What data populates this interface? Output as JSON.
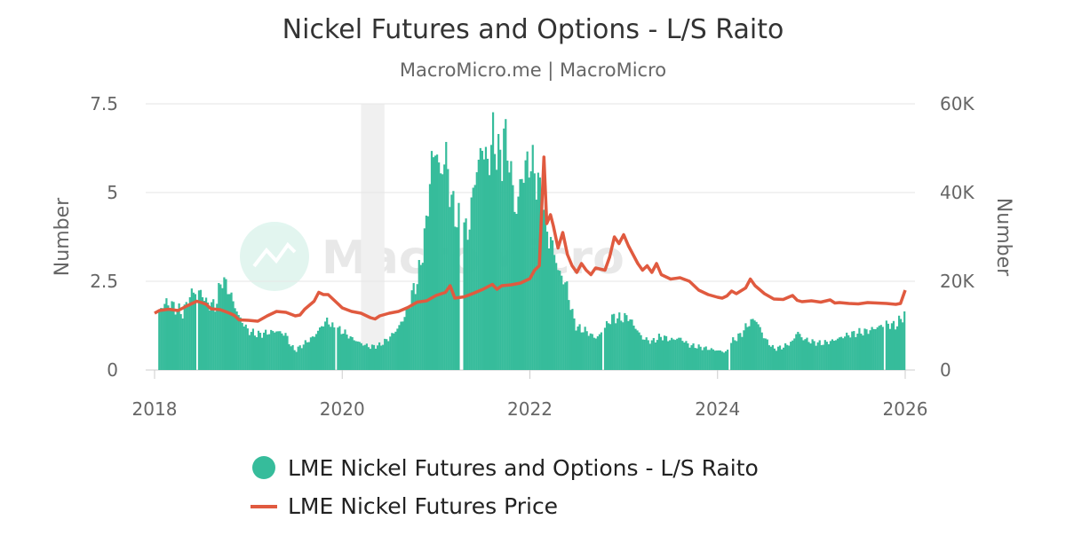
{
  "chart_data": {
    "type": "bar+line",
    "title": "Nickel Futures and Options - L/S Raito",
    "subtitle": "MacroMicro.me | MacroMicro",
    "watermark": "MacroMicro",
    "x_axis": {
      "ticks": [
        "2018",
        "2020",
        "2022",
        "2024",
        "2026"
      ],
      "range": [
        2018,
        2026
      ]
    },
    "y_left": {
      "title": "Number",
      "ticks": [
        "0",
        "2.5",
        "5",
        "7.5"
      ],
      "range": [
        0,
        7.5
      ]
    },
    "y_right": {
      "title": "Number",
      "ticks": [
        "0",
        "20K",
        "40K",
        "60K"
      ],
      "range": [
        0,
        60000
      ]
    },
    "shaded_region": {
      "from": 2020.2,
      "to": 2020.45
    },
    "colors": {
      "bars": "#36bc9b",
      "line": "#e05a3f",
      "grid": "#e6e6e6",
      "shade": "#f0f0f0"
    },
    "legend": [
      {
        "label": "LME Nickel Futures and Options - L/S Raito",
        "marker": "circle"
      },
      {
        "label": "LME Nickel Futures Price",
        "marker": "line"
      }
    ],
    "series": [
      {
        "name": "LME Nickel Futures and Options - L/S Raito",
        "axis": "left",
        "kind": "bar",
        "points": [
          [
            2018.05,
            1.6
          ],
          [
            2018.1,
            1.9
          ],
          [
            2018.2,
            1.8
          ],
          [
            2018.3,
            1.6
          ],
          [
            2018.4,
            2.2
          ],
          [
            2018.5,
            2.2
          ],
          [
            2018.55,
            1.9
          ],
          [
            2018.65,
            1.8
          ],
          [
            2018.72,
            2.6
          ],
          [
            2018.8,
            2.2
          ],
          [
            2018.9,
            1.5
          ],
          [
            2019.0,
            1.1
          ],
          [
            2019.1,
            1.0
          ],
          [
            2019.2,
            1.05
          ],
          [
            2019.3,
            1.1
          ],
          [
            2019.4,
            1.0
          ],
          [
            2019.45,
            0.7
          ],
          [
            2019.5,
            0.55
          ],
          [
            2019.6,
            0.75
          ],
          [
            2019.7,
            0.95
          ],
          [
            2019.8,
            1.3
          ],
          [
            2019.85,
            1.4
          ],
          [
            2019.9,
            1.2
          ],
          [
            2020.0,
            1.1
          ],
          [
            2020.1,
            0.9
          ],
          [
            2020.2,
            0.75
          ],
          [
            2020.3,
            0.65
          ],
          [
            2020.4,
            0.7
          ],
          [
            2020.5,
            0.9
          ],
          [
            2020.6,
            1.2
          ],
          [
            2020.7,
            1.7
          ],
          [
            2020.75,
            2.2
          ],
          [
            2020.8,
            2.5
          ],
          [
            2020.85,
            3.2
          ],
          [
            2020.9,
            4.2
          ],
          [
            2020.95,
            5.8
          ],
          [
            2021.0,
            6.3
          ],
          [
            2021.05,
            5.4
          ],
          [
            2021.1,
            6.2
          ],
          [
            2021.15,
            5.0
          ],
          [
            2021.2,
            4.4
          ],
          [
            2021.3,
            4.0
          ],
          [
            2021.35,
            3.9
          ],
          [
            2021.4,
            5.2
          ],
          [
            2021.5,
            6.4
          ],
          [
            2021.55,
            5.7
          ],
          [
            2021.6,
            6.6
          ],
          [
            2021.65,
            6.2
          ],
          [
            2021.7,
            5.8
          ],
          [
            2021.72,
            6.8
          ],
          [
            2021.8,
            5.6
          ],
          [
            2021.85,
            4.3
          ],
          [
            2021.9,
            5.3
          ],
          [
            2021.95,
            5.7
          ],
          [
            2022.0,
            5.9
          ],
          [
            2022.05,
            5.6
          ],
          [
            2022.1,
            5.1
          ],
          [
            2022.15,
            4.6
          ],
          [
            2022.2,
            3.7
          ],
          [
            2022.25,
            3.5
          ],
          [
            2022.3,
            2.8
          ],
          [
            2022.35,
            2.6
          ],
          [
            2022.4,
            2.3
          ],
          [
            2022.45,
            1.6
          ],
          [
            2022.5,
            1.2
          ],
          [
            2022.6,
            1.1
          ],
          [
            2022.7,
            0.9
          ],
          [
            2022.75,
            1.0
          ],
          [
            2022.85,
            1.4
          ],
          [
            2022.9,
            1.5
          ],
          [
            2022.95,
            1.45
          ],
          [
            2023.05,
            1.5
          ],
          [
            2023.1,
            1.3
          ],
          [
            2023.15,
            1.1
          ],
          [
            2023.2,
            0.9
          ],
          [
            2023.3,
            0.8
          ],
          [
            2023.4,
            0.95
          ],
          [
            2023.5,
            0.85
          ],
          [
            2023.6,
            0.9
          ],
          [
            2023.7,
            0.7
          ],
          [
            2023.8,
            0.65
          ],
          [
            2023.9,
            0.6
          ],
          [
            2024.0,
            0.55
          ],
          [
            2024.1,
            0.5
          ],
          [
            2024.15,
            0.8
          ],
          [
            2024.2,
            0.9
          ],
          [
            2024.25,
            1.0
          ],
          [
            2024.3,
            1.2
          ],
          [
            2024.35,
            1.35
          ],
          [
            2024.4,
            1.45
          ],
          [
            2024.45,
            1.2
          ],
          [
            2024.5,
            0.9
          ],
          [
            2024.6,
            0.6
          ],
          [
            2024.7,
            0.65
          ],
          [
            2024.8,
            0.8
          ],
          [
            2024.85,
            1.1
          ],
          [
            2024.9,
            0.9
          ],
          [
            2025.0,
            0.8
          ],
          [
            2025.1,
            0.75
          ],
          [
            2025.2,
            0.8
          ],
          [
            2025.3,
            0.9
          ],
          [
            2025.4,
            1.0
          ],
          [
            2025.5,
            1.05
          ],
          [
            2025.6,
            1.1
          ],
          [
            2025.7,
            1.2
          ],
          [
            2025.8,
            1.3
          ],
          [
            2025.9,
            1.25
          ],
          [
            2026.0,
            1.6
          ]
        ]
      },
      {
        "name": "LME Nickel Futures Price",
        "axis": "right",
        "kind": "line",
        "points": [
          [
            2018.0,
            12800
          ],
          [
            2018.05,
            13400
          ],
          [
            2018.15,
            13700
          ],
          [
            2018.25,
            13400
          ],
          [
            2018.35,
            14500
          ],
          [
            2018.45,
            15500
          ],
          [
            2018.5,
            15200
          ],
          [
            2018.55,
            14800
          ],
          [
            2018.6,
            13800
          ],
          [
            2018.7,
            13600
          ],
          [
            2018.8,
            12800
          ],
          [
            2018.85,
            12300
          ],
          [
            2018.9,
            11300
          ],
          [
            2019.0,
            11200
          ],
          [
            2019.1,
            11000
          ],
          [
            2019.2,
            12200
          ],
          [
            2019.3,
            13200
          ],
          [
            2019.4,
            13000
          ],
          [
            2019.5,
            12200
          ],
          [
            2019.55,
            12400
          ],
          [
            2019.6,
            13700
          ],
          [
            2019.7,
            15500
          ],
          [
            2019.75,
            17500
          ],
          [
            2019.8,
            17000
          ],
          [
            2019.85,
            17000
          ],
          [
            2019.9,
            16000
          ],
          [
            2020.0,
            14000
          ],
          [
            2020.1,
            13200
          ],
          [
            2020.2,
            12800
          ],
          [
            2020.3,
            11800
          ],
          [
            2020.35,
            11500
          ],
          [
            2020.4,
            12200
          ],
          [
            2020.5,
            12800
          ],
          [
            2020.6,
            13200
          ],
          [
            2020.7,
            14100
          ],
          [
            2020.8,
            15300
          ],
          [
            2020.9,
            15600
          ],
          [
            2021.0,
            16800
          ],
          [
            2021.1,
            17500
          ],
          [
            2021.15,
            19000
          ],
          [
            2021.2,
            16200
          ],
          [
            2021.3,
            16500
          ],
          [
            2021.4,
            17300
          ],
          [
            2021.5,
            18200
          ],
          [
            2021.6,
            19300
          ],
          [
            2021.65,
            18200
          ],
          [
            2021.7,
            19000
          ],
          [
            2021.8,
            19200
          ],
          [
            2021.9,
            19600
          ],
          [
            2022.0,
            20600
          ],
          [
            2022.05,
            22500
          ],
          [
            2022.1,
            23500
          ],
          [
            2022.15,
            48000
          ],
          [
            2022.18,
            33000
          ],
          [
            2022.22,
            35000
          ],
          [
            2022.25,
            32500
          ],
          [
            2022.3,
            27500
          ],
          [
            2022.35,
            31000
          ],
          [
            2022.4,
            26000
          ],
          [
            2022.45,
            23500
          ],
          [
            2022.5,
            22000
          ],
          [
            2022.55,
            24000
          ],
          [
            2022.6,
            22500
          ],
          [
            2022.65,
            21500
          ],
          [
            2022.7,
            23000
          ],
          [
            2022.8,
            22500
          ],
          [
            2022.85,
            25500
          ],
          [
            2022.9,
            30000
          ],
          [
            2022.95,
            28500
          ],
          [
            2023.0,
            30500
          ],
          [
            2023.05,
            28000
          ],
          [
            2023.1,
            26000
          ],
          [
            2023.15,
            24000
          ],
          [
            2023.2,
            22500
          ],
          [
            2023.25,
            23500
          ],
          [
            2023.3,
            22000
          ],
          [
            2023.35,
            24000
          ],
          [
            2023.4,
            21500
          ],
          [
            2023.5,
            20500
          ],
          [
            2023.6,
            20800
          ],
          [
            2023.7,
            20000
          ],
          [
            2023.8,
            18000
          ],
          [
            2023.9,
            17000
          ],
          [
            2024.0,
            16400
          ],
          [
            2024.05,
            16200
          ],
          [
            2024.1,
            16700
          ],
          [
            2024.15,
            17800
          ],
          [
            2024.2,
            17200
          ],
          [
            2024.3,
            18500
          ],
          [
            2024.35,
            20500
          ],
          [
            2024.4,
            19000
          ],
          [
            2024.5,
            17200
          ],
          [
            2024.6,
            16000
          ],
          [
            2024.7,
            15900
          ],
          [
            2024.8,
            16800
          ],
          [
            2024.85,
            15700
          ],
          [
            2024.9,
            15400
          ],
          [
            2025.0,
            15600
          ],
          [
            2025.1,
            15300
          ],
          [
            2025.2,
            15800
          ],
          [
            2025.25,
            15100
          ],
          [
            2025.3,
            15200
          ],
          [
            2025.4,
            15000
          ],
          [
            2025.5,
            14900
          ],
          [
            2025.6,
            15200
          ],
          [
            2025.7,
            15100
          ],
          [
            2025.8,
            15000
          ],
          [
            2025.9,
            14800
          ],
          [
            2025.95,
            15000
          ],
          [
            2026.0,
            18000
          ]
        ]
      }
    ]
  }
}
